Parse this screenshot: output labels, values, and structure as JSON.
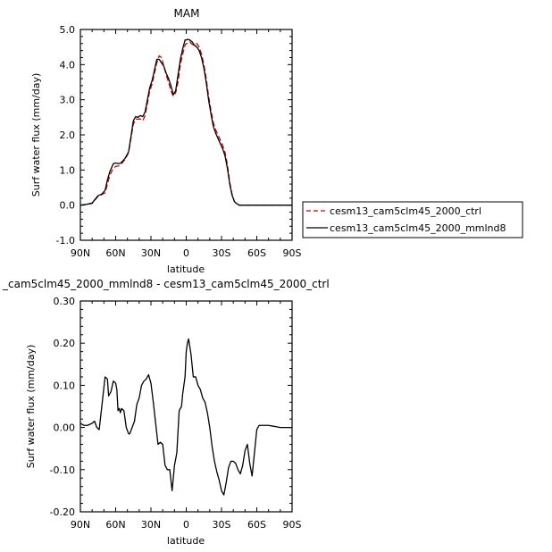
{
  "chart_data": [
    {
      "type": "line",
      "title": "MAM",
      "xlabel": "latitude",
      "ylabel": "Surf water flux (mm/day)",
      "xlim": [
        90,
        -90
      ],
      "ylim": [
        -1.0,
        5.0
      ],
      "x_tick_values": [
        90,
        60,
        30,
        0,
        -30,
        -60,
        -90
      ],
      "x_tick_labels": [
        "90N",
        "60N",
        "30N",
        "0",
        "30S",
        "60S",
        "90S"
      ],
      "y_tick_values": [
        -1.0,
        0.0,
        1.0,
        2.0,
        3.0,
        4.0,
        5.0
      ],
      "y_tick_labels": [
        "-1.0",
        "0.0",
        "1.0",
        "2.0",
        "3.0",
        "4.0",
        "5.0"
      ],
      "legend_position": "right",
      "series": [
        {
          "name": "cesm13_cam5clm45_2000_ctrl",
          "color": "#cc0000",
          "dash": "dashed",
          "x": [
            90,
            85,
            80,
            75,
            72,
            69,
            67,
            65,
            62,
            60,
            57,
            55,
            52,
            49,
            47,
            45,
            43,
            41,
            39,
            37,
            35,
            33,
            31,
            29,
            27,
            25,
            23,
            21,
            19,
            17,
            15,
            13,
            11,
            9,
            7,
            5,
            3,
            1,
            0,
            -1,
            -3,
            -5,
            -7,
            -9,
            -11,
            -13,
            -15,
            -17,
            -19,
            -21,
            -23,
            -25,
            -27,
            -29,
            -31,
            -33,
            -35,
            -37,
            -39,
            -41,
            -43,
            -45,
            -47,
            -49,
            -51,
            -53,
            -55,
            -57,
            -59,
            -61,
            -63,
            -65,
            -67,
            -69,
            -71,
            -73,
            -75,
            -77,
            -80,
            -85,
            -90
          ],
          "y": [
            0.0,
            0.02,
            0.05,
            0.25,
            0.3,
            0.35,
            0.6,
            0.85,
            1.05,
            1.1,
            1.12,
            1.18,
            1.3,
            1.5,
            1.9,
            2.3,
            2.45,
            2.45,
            2.45,
            2.4,
            2.55,
            2.9,
            3.25,
            3.45,
            3.75,
            4.05,
            4.25,
            4.2,
            3.95,
            3.7,
            3.5,
            3.25,
            3.1,
            3.2,
            3.5,
            4.0,
            4.3,
            4.55,
            4.6,
            4.6,
            4.65,
            4.58,
            4.55,
            4.6,
            4.5,
            4.3,
            4.0,
            3.6,
            3.1,
            2.7,
            2.35,
            2.15,
            2.0,
            1.85,
            1.7,
            1.5,
            1.15,
            0.65,
            0.3,
            0.1,
            0.05,
            0.0,
            0.0,
            0.0,
            0.0,
            0.0,
            0.0,
            0.0,
            0.0,
            0.0,
            0.0,
            0.0,
            0.0,
            0.0,
            0.0,
            0.0,
            0.0,
            0.0,
            0.0,
            0.0,
            0.0
          ]
        },
        {
          "name": "cesm13_cam5clm45_2000_mmlnd8",
          "color": "#000000",
          "dash": "solid",
          "x": [
            90,
            85,
            80,
            75,
            72,
            69,
            67,
            65,
            62,
            60,
            57,
            55,
            52,
            49,
            47,
            45,
            43,
            41,
            39,
            37,
            35,
            33,
            31,
            29,
            27,
            25,
            23,
            21,
            19,
            17,
            15,
            13,
            11,
            9,
            7,
            5,
            3,
            1,
            0,
            -1,
            -3,
            -5,
            -7,
            -9,
            -11,
            -13,
            -15,
            -17,
            -19,
            -21,
            -23,
            -25,
            -27,
            -29,
            -31,
            -33,
            -35,
            -37,
            -39,
            -41,
            -43,
            -45,
            -47,
            -49,
            -51,
            -53,
            -55,
            -57,
            -59,
            -61,
            -63,
            -65,
            -67,
            -69,
            -71,
            -73,
            -75,
            -77,
            -80,
            -85,
            -90
          ],
          "y": [
            0.0,
            0.02,
            0.06,
            0.27,
            0.31,
            0.42,
            0.72,
            0.95,
            1.18,
            1.2,
            1.18,
            1.22,
            1.33,
            1.52,
            1.95,
            2.4,
            2.52,
            2.5,
            2.55,
            2.52,
            2.65,
            3.0,
            3.35,
            3.55,
            3.85,
            4.15,
            4.15,
            4.05,
            3.95,
            3.75,
            3.6,
            3.4,
            3.15,
            3.25,
            3.7,
            4.15,
            4.45,
            4.7,
            4.7,
            4.72,
            4.7,
            4.65,
            4.55,
            4.5,
            4.4,
            4.2,
            3.9,
            3.5,
            3.0,
            2.6,
            2.25,
            2.05,
            1.9,
            1.75,
            1.6,
            1.4,
            1.05,
            0.6,
            0.28,
            0.1,
            0.04,
            0.0,
            0.0,
            0.0,
            0.0,
            0.0,
            0.0,
            0.0,
            0.0,
            0.0,
            0.0,
            0.0,
            0.0,
            0.0,
            0.0,
            0.0,
            0.0,
            0.0,
            0.0,
            0.0,
            0.0
          ]
        }
      ]
    },
    {
      "type": "line",
      "title": "_cam5clm45_2000_mmlnd8 - cesm13_cam5clm45_2000_ctrl",
      "xlabel": "latitude",
      "ylabel": "Surf water flux (mm/day)",
      "xlim": [
        90,
        -90
      ],
      "ylim": [
        -0.2,
        0.3
      ],
      "x_tick_values": [
        90,
        60,
        30,
        0,
        -30,
        -60,
        -90
      ],
      "x_tick_labels": [
        "90N",
        "60N",
        "30N",
        "0",
        "30S",
        "60S",
        "90S"
      ],
      "y_tick_values": [
        -0.2,
        -0.1,
        0.0,
        0.1,
        0.2,
        0.3
      ],
      "y_tick_labels": [
        "-0.20",
        "-0.10",
        "0.00",
        "0.10",
        "0.20",
        "0.30"
      ],
      "series": [
        {
          "color": "#000000",
          "dash": "solid",
          "x": [
            90,
            87,
            84,
            80,
            78,
            76,
            74,
            73,
            71,
            69,
            67,
            66,
            64,
            62,
            60,
            59,
            58,
            57,
            56,
            55,
            53,
            51,
            49,
            48,
            46,
            44,
            42,
            40,
            38,
            36,
            34,
            32,
            30,
            28,
            26,
            24,
            22,
            20,
            18,
            16,
            14,
            12,
            10,
            8,
            6,
            4,
            3,
            1,
            0,
            -1,
            -2,
            -4,
            -6,
            -8,
            -10,
            -12,
            -14,
            -16,
            -18,
            -20,
            -22,
            -24,
            -26,
            -28,
            -30,
            -32,
            -34,
            -36,
            -38,
            -40,
            -42,
            -44,
            -46,
            -48,
            -50,
            -52,
            -54,
            -56,
            -58,
            -60,
            -62,
            -64,
            -66,
            -68,
            -70,
            -72,
            -74,
            -76,
            -78,
            -80,
            -85,
            -90
          ],
          "y": [
            0.01,
            0.005,
            0.005,
            0.01,
            0.015,
            0.0,
            -0.005,
            0.02,
            0.07,
            0.12,
            0.115,
            0.075,
            0.085,
            0.11,
            0.105,
            0.09,
            0.04,
            0.045,
            0.035,
            0.045,
            0.04,
            0.0,
            -0.015,
            -0.015,
            0.0,
            0.015,
            0.055,
            0.07,
            0.1,
            0.11,
            0.115,
            0.125,
            0.105,
            0.06,
            0.01,
            -0.04,
            -0.035,
            -0.04,
            -0.09,
            -0.1,
            -0.1,
            -0.15,
            -0.09,
            -0.06,
            0.04,
            0.05,
            0.08,
            0.12,
            0.18,
            0.2,
            0.21,
            0.175,
            0.12,
            0.12,
            0.1,
            0.09,
            0.07,
            0.06,
            0.035,
            0.0,
            -0.045,
            -0.08,
            -0.105,
            -0.125,
            -0.15,
            -0.16,
            -0.13,
            -0.095,
            -0.08,
            -0.08,
            -0.085,
            -0.1,
            -0.11,
            -0.09,
            -0.055,
            -0.04,
            -0.085,
            -0.115,
            -0.06,
            -0.005,
            0.005,
            0.005,
            0.005,
            0.005,
            0.005,
            0.004,
            0.003,
            0.002,
            0.001,
            0.0,
            0.0,
            0.0
          ]
        }
      ]
    }
  ]
}
